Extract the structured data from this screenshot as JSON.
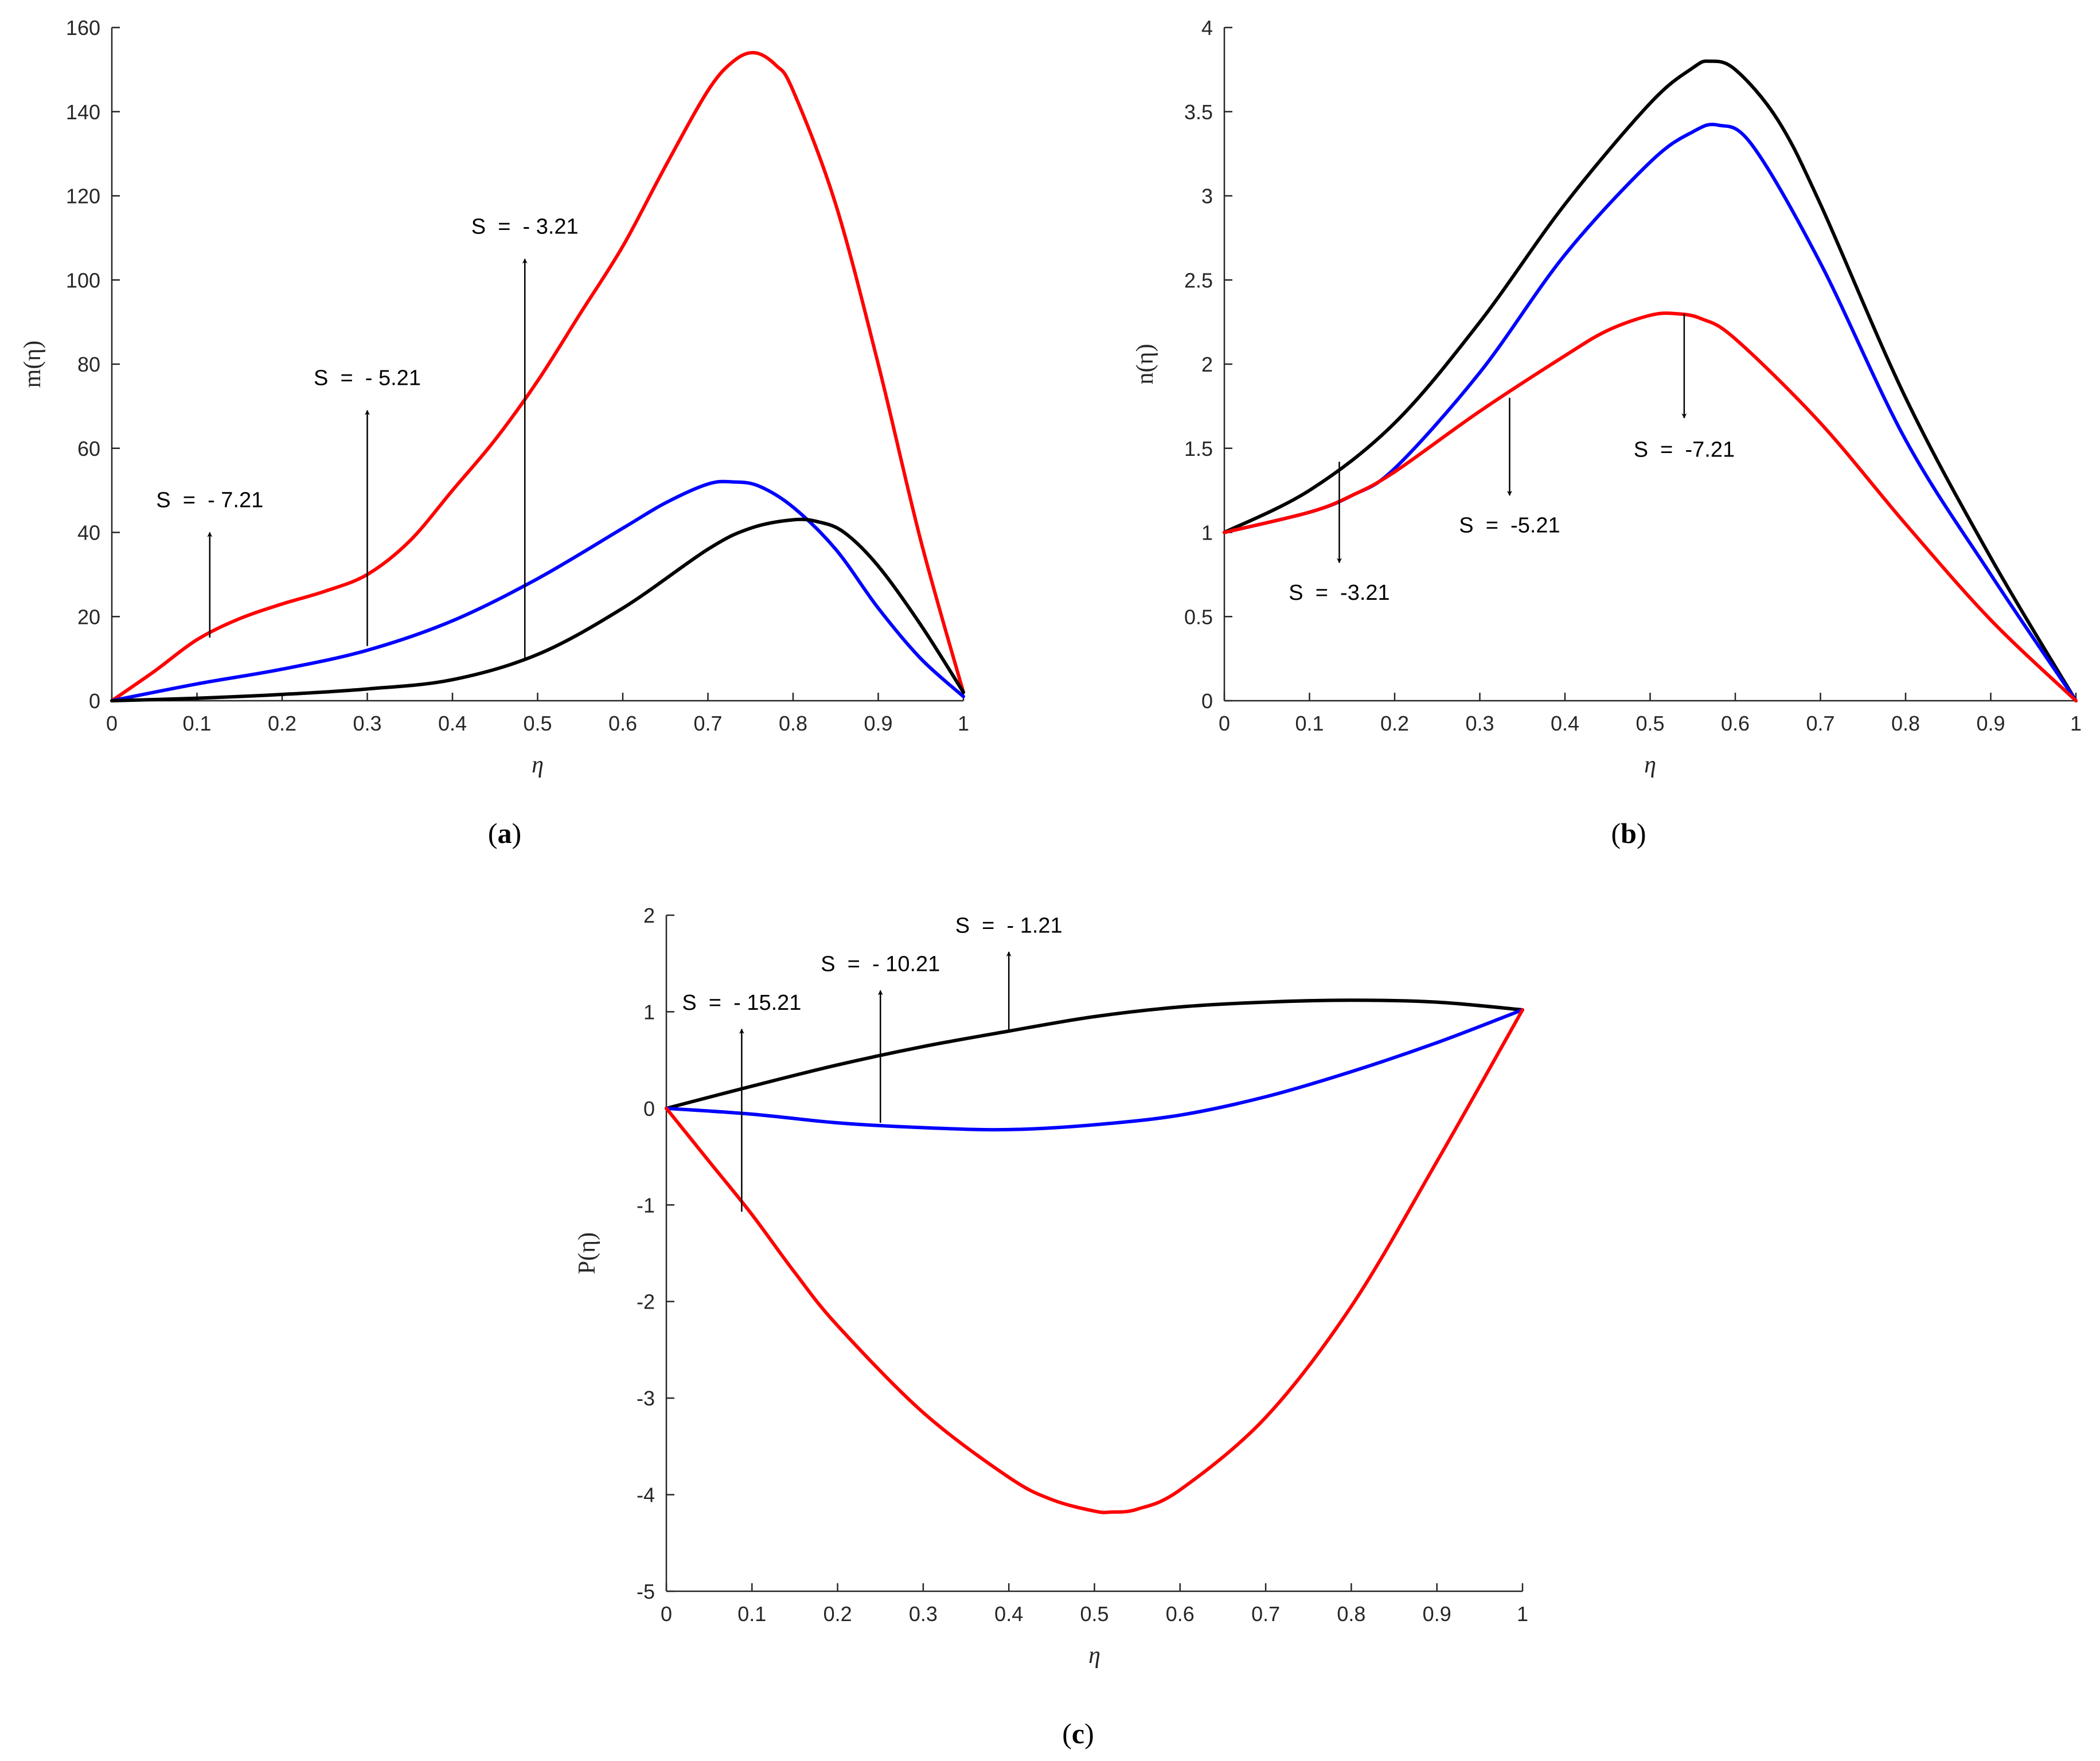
{
  "colors": {
    "red": "#ff0000",
    "blue": "#0000ff",
    "black": "#000000",
    "axis": "#262626"
  },
  "chart_data": [
    {
      "id": "a",
      "type": "line",
      "caption_open": "(",
      "caption_letter": "a",
      "caption_close": ")",
      "xlabel": "η",
      "ylabel": "m(η)",
      "xlim": [
        0,
        1
      ],
      "ylim": [
        0,
        160
      ],
      "xticks": [
        0,
        0.1,
        0.2,
        0.3,
        0.4,
        0.5,
        0.6,
        0.7,
        0.8,
        0.9,
        1
      ],
      "xtick_labels": [
        "0",
        "0.1",
        "0.2",
        "0.3",
        "0.4",
        "0.5",
        "0.6",
        "0.7",
        "0.8",
        "0.9",
        "1"
      ],
      "yticks": [
        0,
        20,
        40,
        60,
        80,
        100,
        120,
        140,
        160
      ],
      "ytick_labels": [
        "0",
        "20",
        "40",
        "60",
        "80",
        "100",
        "120",
        "140",
        "160"
      ],
      "series": [
        {
          "name": "S = -7.21",
          "color": "red",
          "x": [
            0,
            0.05,
            0.1,
            0.15,
            0.2,
            0.25,
            0.3,
            0.35,
            0.4,
            0.45,
            0.5,
            0.55,
            0.6,
            0.65,
            0.7,
            0.73,
            0.755,
            0.78,
            0.8,
            0.85,
            0.9,
            0.95,
            1
          ],
          "y": [
            0,
            7,
            14.5,
            19.5,
            23,
            26,
            30,
            38,
            50,
            62,
            76,
            92,
            108,
            127,
            145,
            152,
            154,
            151,
            145,
            118,
            80,
            38,
            2
          ]
        },
        {
          "name": "S = -5.21",
          "color": "blue",
          "x": [
            0,
            0.1,
            0.2,
            0.3,
            0.4,
            0.5,
            0.6,
            0.65,
            0.7,
            0.73,
            0.76,
            0.8,
            0.85,
            0.9,
            0.95,
            1
          ],
          "y": [
            0,
            4,
            7.5,
            12,
            19,
            29,
            41,
            47,
            51.5,
            52,
            51,
            46,
            36,
            22,
            10,
            1
          ]
        },
        {
          "name": "S = -3.21",
          "color": "black",
          "x": [
            0,
            0.1,
            0.2,
            0.3,
            0.4,
            0.5,
            0.6,
            0.7,
            0.75,
            0.8,
            0.83,
            0.86,
            0.9,
            0.95,
            1
          ],
          "y": [
            0,
            0.6,
            1.5,
            2.8,
            5,
            11,
            22,
            36,
            41,
            43,
            42.5,
            40,
            32,
            18,
            2
          ]
        }
      ],
      "annotations": [
        {
          "label": "S  =  - 7.21",
          "x": 0.115,
          "y_from": 15,
          "y_to": 40,
          "label_y": 46
        },
        {
          "label": "S  =  - 5.21",
          "x": 0.3,
          "y_from": 13,
          "y_to": 69,
          "label_y": 75
        },
        {
          "label": "S  =  - 3.21",
          "x": 0.485,
          "y_from": 10,
          "y_to": 105,
          "label_y": 111
        }
      ]
    },
    {
      "id": "b",
      "type": "line",
      "caption_open": "(",
      "caption_letter": "b",
      "caption_close": ")",
      "xlabel": "η",
      "ylabel": "n(η)",
      "xlim": [
        0,
        1
      ],
      "ylim": [
        0,
        4
      ],
      "xticks": [
        0,
        0.1,
        0.2,
        0.3,
        0.4,
        0.5,
        0.6,
        0.7,
        0.8,
        0.9,
        1
      ],
      "xtick_labels": [
        "0",
        "0.1",
        "0.2",
        "0.3",
        "0.4",
        "0.5",
        "0.6",
        "0.7",
        "0.8",
        "0.9",
        "1"
      ],
      "yticks": [
        0,
        0.5,
        1,
        1.5,
        2,
        2.5,
        3,
        3.5,
        4
      ],
      "ytick_labels": [
        "0",
        "0.5",
        "1",
        "1.5",
        "2",
        "2.5",
        "3",
        "3.5",
        "4"
      ],
      "series": [
        {
          "name": "S = -3.21",
          "color": "black",
          "x": [
            0,
            0.1,
            0.2,
            0.3,
            0.4,
            0.5,
            0.55,
            0.57,
            0.6,
            0.65,
            0.7,
            0.8,
            0.9,
            1
          ],
          "y": [
            1,
            1.25,
            1.65,
            2.25,
            2.95,
            3.55,
            3.76,
            3.8,
            3.75,
            3.45,
            2.95,
            1.8,
            0.85,
            0
          ]
        },
        {
          "name": "S = -5.21",
          "color": "blue",
          "x": [
            0,
            0.1,
            0.15,
            0.2,
            0.3,
            0.4,
            0.5,
            0.55,
            0.58,
            0.62,
            0.7,
            0.8,
            0.9,
            1
          ],
          "y": [
            1,
            1.12,
            1.22,
            1.38,
            1.95,
            2.65,
            3.2,
            3.38,
            3.42,
            3.3,
            2.6,
            1.55,
            0.75,
            0
          ]
        },
        {
          "name": "S = -7.21",
          "color": "red",
          "x": [
            0,
            0.1,
            0.15,
            0.2,
            0.3,
            0.4,
            0.45,
            0.5,
            0.53,
            0.56,
            0.6,
            0.7,
            0.8,
            0.9,
            1
          ],
          "y": [
            1,
            1.12,
            1.22,
            1.36,
            1.72,
            2.05,
            2.2,
            2.29,
            2.3,
            2.27,
            2.15,
            1.65,
            1.05,
            0.48,
            0
          ]
        }
      ],
      "annotations": [
        {
          "label": "S  =  -3.21",
          "x": 0.135,
          "y_from": 1.42,
          "y_to": 0.82,
          "label_y": 0.6
        },
        {
          "label": "S  =  -5.21",
          "x": 0.335,
          "y_from": 1.8,
          "y_to": 1.22,
          "label_y": 1.0
        },
        {
          "label": "S  =  -7.21",
          "x": 0.54,
          "y_from": 2.3,
          "y_to": 1.68,
          "label_y": 1.45
        }
      ]
    },
    {
      "id": "c",
      "type": "line",
      "caption_open": "(",
      "caption_letter": "c",
      "caption_close": ")",
      "xlabel": "η",
      "ylabel": "P(η)",
      "xlim": [
        0,
        1
      ],
      "ylim": [
        -5,
        2
      ],
      "xticks": [
        0,
        0.1,
        0.2,
        0.3,
        0.4,
        0.5,
        0.6,
        0.7,
        0.8,
        0.9,
        1
      ],
      "xtick_labels": [
        "0",
        "0.1",
        "0.2",
        "0.3",
        "0.4",
        "0.5",
        "0.6",
        "0.7",
        "0.8",
        "0.9",
        "1"
      ],
      "yticks": [
        -5,
        -4,
        -3,
        -2,
        -1,
        0,
        1,
        2
      ],
      "ytick_labels": [
        "-5",
        "-4",
        "-3",
        "-2",
        "-1",
        "0",
        "1",
        "2"
      ],
      "series": [
        {
          "name": "S = -1.21",
          "color": "black",
          "x": [
            0,
            0.1,
            0.2,
            0.3,
            0.4,
            0.5,
            0.6,
            0.7,
            0.8,
            0.9,
            1
          ],
          "y": [
            0,
            0.23,
            0.45,
            0.64,
            0.8,
            0.95,
            1.05,
            1.1,
            1.12,
            1.1,
            1.02
          ]
        },
        {
          "name": "S = -10.21",
          "color": "blue",
          "x": [
            0,
            0.1,
            0.2,
            0.3,
            0.4,
            0.5,
            0.6,
            0.7,
            0.8,
            0.9,
            1
          ],
          "y": [
            0,
            -0.06,
            -0.15,
            -0.2,
            -0.22,
            -0.17,
            -0.07,
            0.12,
            0.38,
            0.68,
            1.02
          ]
        },
        {
          "name": "S = -15.21",
          "color": "red",
          "x": [
            0,
            0.05,
            0.1,
            0.15,
            0.2,
            0.3,
            0.4,
            0.45,
            0.5,
            0.52,
            0.55,
            0.6,
            0.7,
            0.8,
            0.9,
            1
          ],
          "y": [
            0,
            -0.55,
            -1.1,
            -1.7,
            -2.25,
            -3.15,
            -3.82,
            -4.05,
            -4.17,
            -4.18,
            -4.15,
            -3.95,
            -3.2,
            -2.05,
            -0.55,
            1.02
          ]
        }
      ],
      "annotations": [
        {
          "label": "S  =  - 15.21",
          "x": 0.088,
          "y_from": -1.07,
          "y_to": 0.82,
          "label_y": 1.02
        },
        {
          "label": "S  =  - 10.21",
          "x": 0.25,
          "y_from": -0.15,
          "y_to": 1.22,
          "label_y": 1.42
        },
        {
          "label": "S  =  - 1.21",
          "x": 0.4,
          "y_from": 0.8,
          "y_to": 1.62,
          "label_y": 1.82
        }
      ]
    }
  ]
}
